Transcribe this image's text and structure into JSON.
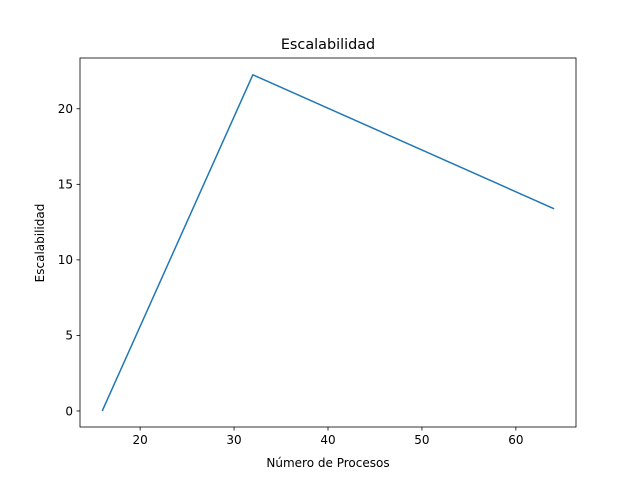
{
  "chart_data": {
    "type": "line",
    "title": "Escalabilidad",
    "xlabel": "Número de Procesos",
    "ylabel": "Escalabilidad",
    "x": [
      16,
      32,
      64
    ],
    "series": [
      {
        "values": [
          0.05,
          22.25,
          13.4
        ],
        "color": "#1f77b4"
      }
    ],
    "xlim": [
      13.6,
      66.4
    ],
    "ylim": [
      -1.06,
      23.36
    ],
    "xticks": [
      20,
      30,
      40,
      50,
      60
    ],
    "yticks": [
      0,
      5,
      10,
      15,
      20
    ],
    "grid": false,
    "legend": null
  }
}
